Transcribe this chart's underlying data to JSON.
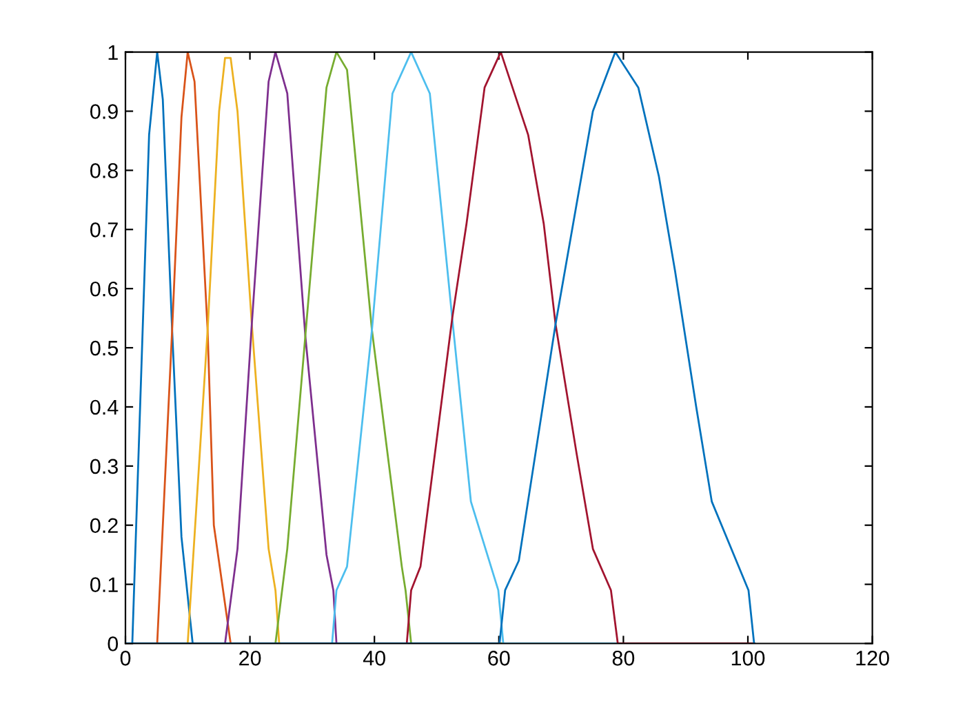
{
  "chart_data": {
    "type": "line",
    "xlim": [
      0,
      120
    ],
    "ylim": [
      0,
      1
    ],
    "xticks": [
      0,
      20,
      40,
      60,
      80,
      100,
      120
    ],
    "yticks": [
      0,
      0.1,
      0.2,
      0.3,
      0.4,
      0.5,
      0.6,
      0.7,
      0.8,
      0.9,
      1
    ],
    "grid": false,
    "series": [
      {
        "color": "#0072bd",
        "x": [
          0,
          1.1,
          3.8,
          5.1,
          6.0,
          7.5,
          9.0,
          10.8,
          101
        ],
        "values": [
          0,
          0,
          0.86,
          1,
          0.92,
          0.53,
          0.18,
          0,
          0
        ]
      },
      {
        "color": "#d95319",
        "x": [
          0,
          5.1,
          7.5,
          9.0,
          10.0,
          11.1,
          13.2,
          14.2,
          16.9,
          101
        ],
        "values": [
          0,
          0,
          0.53,
          0.89,
          1,
          0.95,
          0.53,
          0.2,
          0,
          0
        ]
      },
      {
        "color": "#edb120",
        "x": [
          0,
          10.0,
          13.2,
          15.05,
          16.0,
          16.9,
          18.0,
          20.3,
          23.0,
          24.1,
          24.7,
          101
        ],
        "values": [
          0,
          0,
          0.53,
          0.9,
          0.99,
          0.99,
          0.9,
          0.54,
          0.16,
          0.09,
          0,
          0
        ]
      },
      {
        "color": "#7e2f8e",
        "x": [
          0,
          16.0,
          18.0,
          20.3,
          23.0,
          24.1,
          26.0,
          28.9,
          32.3,
          33.4,
          33.9,
          101
        ],
        "values": [
          0,
          0,
          0.16,
          0.54,
          0.95,
          1,
          0.93,
          0.52,
          0.15,
          0.09,
          0,
          0
        ]
      },
      {
        "color": "#77ac30",
        "x": [
          0,
          24.1,
          26.0,
          28.9,
          32.3,
          33.9,
          35.6,
          39.6,
          44.4,
          45.0,
          45.9,
          101
        ],
        "values": [
          0,
          0,
          0.16,
          0.52,
          0.94,
          1,
          0.97,
          0.53,
          0.13,
          0.09,
          0,
          0
        ]
      },
      {
        "color": "#4dbeee",
        "x": [
          0,
          33.2,
          33.9,
          35.6,
          39.6,
          42.9,
          45.9,
          48.9,
          52.5,
          55.5,
          59.9,
          60.7,
          101
        ],
        "values": [
          0,
          0,
          0.09,
          0.13,
          0.53,
          0.93,
          1,
          0.93,
          0.55,
          0.24,
          0.09,
          0,
          0
        ]
      },
      {
        "color": "#a2142f",
        "x": [
          0,
          45.2,
          45.9,
          47.4,
          52.5,
          54.8,
          57.7,
          60.3,
          64.7,
          67.2,
          69.1,
          72.5,
          75.1,
          78.0,
          79.1,
          101
        ],
        "values": [
          0,
          0,
          0.09,
          0.13,
          0.55,
          0.71,
          0.94,
          1,
          0.86,
          0.71,
          0.54,
          0.32,
          0.16,
          0.09,
          0,
          0
        ]
      },
      {
        "color": "#0072bd",
        "x": [
          0,
          60.1,
          61.0,
          63.2,
          69.1,
          75.1,
          78.7,
          82.4,
          85.7,
          88.3,
          91.7,
          94.2,
          100.1,
          101
        ],
        "values": [
          0,
          0,
          0.09,
          0.14,
          0.54,
          0.9,
          1,
          0.94,
          0.79,
          0.63,
          0.4,
          0.24,
          0.09,
          0
        ]
      }
    ]
  }
}
